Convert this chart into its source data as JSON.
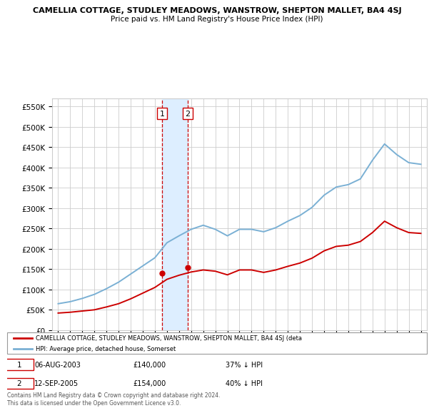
{
  "title": "CAMELLIA COTTAGE, STUDLEY MEADOWS, WANSTROW, SHEPTON MALLET, BA4 4SJ",
  "subtitle": "Price paid vs. HM Land Registry's House Price Index (HPI)",
  "legend_red": "CAMELLIA COTTAGE, STUDLEY MEADOWS, WANSTROW, SHEPTON MALLET, BA4 4SJ (deta",
  "legend_blue": "HPI: Average price, detached house, Somerset",
  "footer": "Contains HM Land Registry data © Crown copyright and database right 2024.\nThis data is licensed under the Open Government Licence v3.0.",
  "sale1_label": "06-AUG-2003",
  "sale1_price": "£140,000",
  "sale1_hpi": "37% ↓ HPI",
  "sale1_year": 2003.6,
  "sale1_value": 140000,
  "sale2_label": "12-SEP-2005",
  "sale2_price": "£154,000",
  "sale2_hpi": "40% ↓ HPI",
  "sale2_year": 2005.7,
  "sale2_value": 154000,
  "ylim_min": 0,
  "ylim_max": 570000,
  "yticks": [
    0,
    50000,
    100000,
    150000,
    200000,
    250000,
    300000,
    350000,
    400000,
    450000,
    500000,
    550000
  ],
  "ytick_labels": [
    "£0",
    "£50K",
    "£100K",
    "£150K",
    "£200K",
    "£250K",
    "£300K",
    "£350K",
    "£400K",
    "£450K",
    "£500K",
    "£550K"
  ],
  "hpi_years": [
    1995,
    1996,
    1997,
    1998,
    1999,
    2000,
    2001,
    2002,
    2003,
    2004,
    2005,
    2006,
    2007,
    2008,
    2009,
    2010,
    2011,
    2012,
    2013,
    2014,
    2015,
    2016,
    2017,
    2018,
    2019,
    2020,
    2021,
    2022,
    2023,
    2024,
    2025
  ],
  "hpi_values": [
    65000,
    70000,
    78000,
    88000,
    102000,
    118000,
    138000,
    158000,
    178000,
    215000,
    232000,
    248000,
    258000,
    248000,
    232000,
    248000,
    248000,
    242000,
    252000,
    268000,
    282000,
    302000,
    332000,
    352000,
    358000,
    372000,
    418000,
    458000,
    432000,
    412000,
    408000
  ],
  "red_years": [
    1995,
    1996,
    1997,
    1998,
    1999,
    2000,
    2001,
    2002,
    2003,
    2004,
    2005,
    2006,
    2007,
    2008,
    2009,
    2010,
    2011,
    2012,
    2013,
    2014,
    2015,
    2016,
    2017,
    2018,
    2019,
    2020,
    2021,
    2022,
    2023,
    2024,
    2025
  ],
  "red_values": [
    42000,
    44000,
    47000,
    50000,
    57000,
    65000,
    77000,
    91000,
    105000,
    125000,
    135000,
    143000,
    148000,
    145000,
    136000,
    148000,
    148000,
    142000,
    148000,
    157000,
    165000,
    177000,
    195000,
    206000,
    209000,
    218000,
    240000,
    268000,
    252000,
    240000,
    238000
  ],
  "bg_color": "#ffffff",
  "grid_color": "#cccccc",
  "red_color": "#cc0000",
  "blue_color": "#7ab0d4",
  "shade_color": "#ddeeff",
  "vline_color": "#cc0000"
}
